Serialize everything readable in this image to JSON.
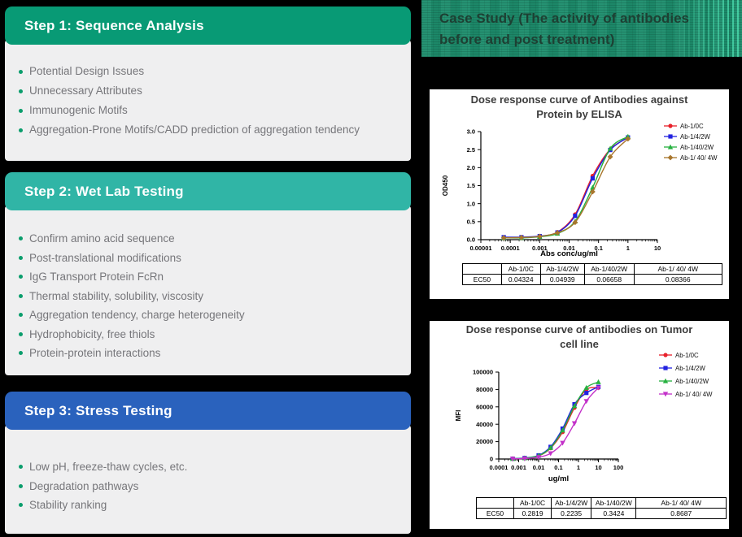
{
  "page": {
    "bg_color": "#000000"
  },
  "left_panel": {
    "bullet_color": "#0a9d6c",
    "text_color": "#76767a",
    "body_color": "#efeff0",
    "steps": [
      {
        "title": "Step 1: Sequence Analysis",
        "header_color": "#089a75",
        "items": [
          "Potential Design Issues",
          "Unnecessary Attributes",
          "Immunogenic Motifs",
          "Aggregation-Prone Motifs/CADD prediction of aggregation tendency"
        ]
      },
      {
        "title": "Step 2: Wet Lab Testing",
        "header_color": "#30b5a6",
        "items": [
          "Confirm amino acid sequence",
          "Post-translational modifications",
          "IgG Transport Protein FcRn",
          "Thermal stability, solubility, viscosity",
          "Aggregation tendency, charge heterogeneity",
          "Hydrophobicity, free thiols",
          "Protein-protein interactions"
        ]
      },
      {
        "title": "Step 3: Stress Testing",
        "header_color": "#2a62bd",
        "items": [
          "Low pH, freeze-thaw cycles, etc.",
          "Degradation pathways",
          "Stability ranking"
        ]
      }
    ]
  },
  "right_panel": {
    "header": {
      "line1": "Case Study (The activity of antibodies",
      "line2": "before and post treatment)",
      "bg_color": "#1e8e6d",
      "text_color": "#1d4033",
      "accent_color": "#5effcb"
    }
  },
  "chart_data": [
    {
      "type": "line",
      "title_lines": [
        "Dose response curve of Antibodies against",
        "Protein by ELISA"
      ],
      "xlabel": "Abs conc/ug/ml",
      "ylabel": "OD450",
      "x_scale": "log",
      "xlim": [
        1e-05,
        10
      ],
      "ylim": [
        0,
        3
      ],
      "grid": false,
      "legend_position": "top-right",
      "x_ticks": [
        "0.00001",
        "0.0001",
        "0.001",
        "0.01",
        "0.1",
        "1",
        "10"
      ],
      "y_ticks": [
        "0.0",
        "0.5",
        "1.0",
        "1.5",
        "2.0",
        "2.5",
        "3.0"
      ],
      "x": [
        6e-05,
        0.00024,
        0.001,
        0.004,
        0.016,
        0.063,
        0.25,
        1
      ],
      "series": [
        {
          "name": "Ab-1/0C",
          "color": "#e8212b",
          "marker": "circle",
          "values": [
            0.05,
            0.06,
            0.09,
            0.21,
            0.7,
            1.77,
            2.51,
            2.83
          ]
        },
        {
          "name": "Ab-1/4/2W",
          "color": "#2222e0",
          "marker": "square",
          "values": [
            0.07,
            0.07,
            0.1,
            0.2,
            0.66,
            1.7,
            2.49,
            2.84
          ]
        },
        {
          "name": "Ab-1/40/2W",
          "color": "#27b140",
          "marker": "triangle-up",
          "values": [
            0.05,
            0.05,
            0.08,
            0.17,
            0.51,
            1.45,
            2.53,
            2.86
          ]
        },
        {
          "name": "Ab-1/ 40/ 4W",
          "color": "#a8762d",
          "marker": "diamond",
          "values": [
            0.05,
            0.06,
            0.09,
            0.19,
            0.48,
            1.33,
            2.3,
            2.8
          ]
        }
      ],
      "table": {
        "row_label": "EC50",
        "columns": [
          "Ab-1/0C",
          "Ab-1/4/2W",
          "Ab-1/40/2W",
          "Ab-1/ 40/ 4W"
        ],
        "values": [
          "0.04324",
          "0.04939",
          "0.06658",
          "0.08366"
        ]
      }
    },
    {
      "type": "line",
      "title_lines": [
        "Dose response curve of antibodies on Tumor",
        "cell line"
      ],
      "xlabel": "ug/ml",
      "ylabel": "MFI",
      "x_scale": "log",
      "xlim": [
        0.0001,
        100
      ],
      "ylim": [
        0,
        100000
      ],
      "grid": false,
      "legend_position": "top-right",
      "x_ticks": [
        "0.0001",
        "0.001",
        "0.01",
        "0.1",
        "1",
        "10",
        "100"
      ],
      "y_ticks": [
        "0",
        "20000",
        "40000",
        "60000",
        "80000",
        "100000"
      ],
      "x": [
        0.0005,
        0.002,
        0.01,
        0.04,
        0.16,
        0.63,
        2.5,
        10
      ],
      "series": [
        {
          "name": "Ab-1/0C",
          "color": "#e8212b",
          "marker": "circle",
          "values": [
            300,
            900,
            3500,
            12500,
            31000,
            59000,
            80000,
            82000
          ]
        },
        {
          "name": "Ab-1/4/2W",
          "color": "#2222e0",
          "marker": "square",
          "values": [
            400,
            1200,
            4200,
            14000,
            35000,
            63000,
            76000,
            83000
          ]
        },
        {
          "name": "Ab-1/40/2W",
          "color": "#27b140",
          "marker": "triangle-up",
          "values": [
            350,
            1000,
            3800,
            13000,
            33000,
            61000,
            82000,
            88500
          ]
        },
        {
          "name": "Ab-1/ 40/ 4W",
          "color": "#c331c9",
          "marker": "triangle-down",
          "values": [
            200,
            500,
            2000,
            6500,
            18500,
            41000,
            66500,
            82000
          ]
        }
      ],
      "table": {
        "row_label": "EC50",
        "columns": [
          "Ab-1/0C",
          "Ab-1/4/2W",
          "Ab-1/40/2W",
          "Ab-1/ 40/ 4W"
        ],
        "values": [
          "0.2819",
          "0.2235",
          "0.3424",
          "0.8687"
        ]
      }
    }
  ]
}
